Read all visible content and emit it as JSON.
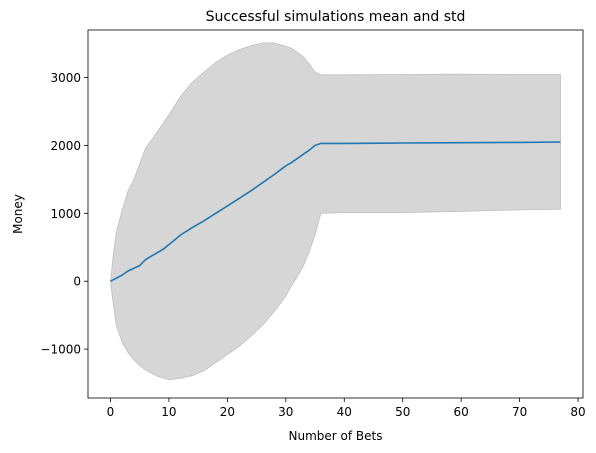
{
  "chart_data": {
    "type": "line",
    "title": "Successful simulations mean and std",
    "xlabel": "Number of Bets",
    "ylabel": "Money",
    "xlim": [
      -3.85,
      80.85
    ],
    "ylim": [
      -1720,
      3700
    ],
    "xticks": [
      0,
      10,
      20,
      30,
      40,
      50,
      60,
      70,
      80
    ],
    "xtick_labels": [
      "0",
      "10",
      "20",
      "30",
      "40",
      "50",
      "60",
      "70",
      "80"
    ],
    "yticks": [
      -1000,
      0,
      1000,
      2000,
      3000
    ],
    "ytick_labels": [
      "−1000",
      "0",
      "1000",
      "2000",
      "3000"
    ],
    "grid": false,
    "colors": {
      "mean_line": "#1f77b4",
      "std_band": "#d6d6d6",
      "std_band_edge": "#c0c0c0"
    },
    "mean": {
      "x": [
        0,
        2,
        3,
        5,
        6,
        7,
        9,
        10,
        12,
        14,
        16,
        18,
        20,
        22,
        24,
        26,
        28,
        30,
        31,
        32,
        34,
        35,
        36,
        40,
        50,
        60,
        70,
        77
      ],
      "y": [
        0,
        90,
        150,
        230,
        320,
        370,
        470,
        540,
        680,
        790,
        890,
        1000,
        1110,
        1220,
        1330,
        1450,
        1570,
        1700,
        1750,
        1810,
        1930,
        2000,
        2030,
        2030,
        2035,
        2040,
        2045,
        2050
      ]
    },
    "upper": {
      "x": [
        0,
        0.5,
        1,
        2,
        3,
        4,
        5,
        6,
        8,
        10,
        12,
        14,
        16,
        18,
        20,
        22,
        24,
        26,
        28,
        30,
        31,
        32,
        33,
        34,
        35,
        36,
        40,
        50,
        58,
        70,
        77
      ],
      "y": [
        0,
        400,
        720,
        1050,
        1330,
        1500,
        1730,
        1960,
        2200,
        2450,
        2720,
        2930,
        3080,
        3220,
        3330,
        3410,
        3470,
        3510,
        3510,
        3460,
        3430,
        3370,
        3300,
        3200,
        3080,
        3040,
        3040,
        3045,
        3050,
        3045,
        3045
      ]
    },
    "lower": {
      "x": [
        0,
        0.5,
        1,
        2,
        3,
        4,
        5,
        6,
        8,
        10,
        12,
        14,
        16,
        18,
        20,
        22,
        24,
        26,
        28,
        30,
        31,
        32,
        33,
        34,
        35,
        36,
        40,
        50,
        60,
        70,
        77
      ],
      "y": [
        0,
        -350,
        -650,
        -900,
        -1050,
        -1160,
        -1240,
        -1310,
        -1400,
        -1450,
        -1430,
        -1390,
        -1320,
        -1200,
        -1080,
        -960,
        -810,
        -650,
        -450,
        -220,
        -60,
        70,
        230,
        430,
        680,
        1000,
        1010,
        1010,
        1030,
        1050,
        1060
      ]
    }
  }
}
